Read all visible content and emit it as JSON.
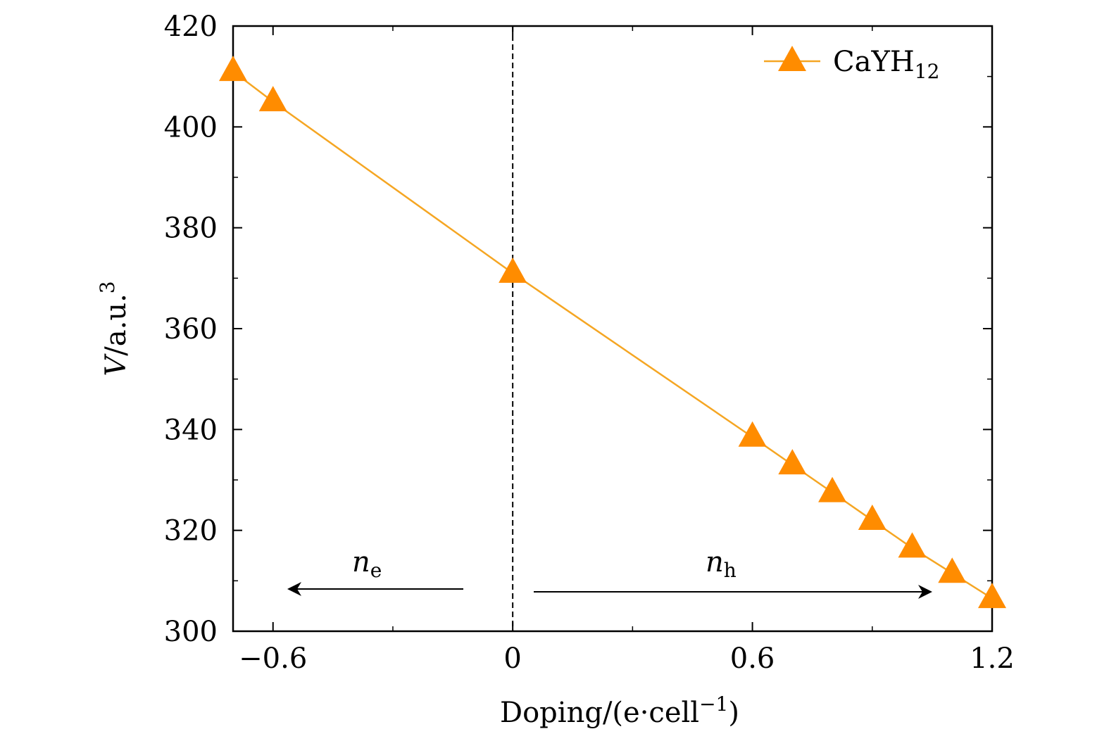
{
  "chart_data": {
    "type": "line",
    "xlabel": "Doping/(e·cell⁻¹)",
    "xlabel_parts": {
      "main": "Doping/(e·cell",
      "sup": "−1",
      "close": ")"
    },
    "ylabel": "V/a.u.³",
    "ylabel_parts": {
      "var": "V",
      "rest": "/a.u.",
      "sup": "3"
    },
    "xlim": [
      -0.7,
      1.2
    ],
    "ylim": [
      300,
      420
    ],
    "x_ticks": [
      -0.6,
      0,
      0.6,
      1.2
    ],
    "x_tick_labels": [
      "−0.6",
      "0",
      "0.6",
      "1.2"
    ],
    "y_ticks": [
      300,
      320,
      340,
      360,
      380,
      400,
      420
    ],
    "y_tick_labels": [
      "300",
      "320",
      "340",
      "360",
      "380",
      "400",
      "420"
    ],
    "grid": false,
    "legend_position": "top-right",
    "vline_x": 0,
    "series": [
      {
        "name": "CaYH₁₂",
        "name_parts": {
          "main": "CaYH",
          "sub": "12"
        },
        "color": "#ff8c00",
        "line_color": "#f5a623",
        "marker": "triangle",
        "x": [
          -0.7,
          -0.6,
          0,
          0.6,
          0.7,
          0.8,
          0.9,
          1.0,
          1.1,
          1.2
        ],
        "y": [
          411,
          405,
          371,
          338.5,
          333,
          327.5,
          322,
          316.5,
          311.5,
          306.5
        ]
      }
    ],
    "annotations": [
      {
        "var": "n",
        "sub": "e",
        "direction": "left"
      },
      {
        "var": "n",
        "sub": "h",
        "direction": "right"
      }
    ]
  }
}
